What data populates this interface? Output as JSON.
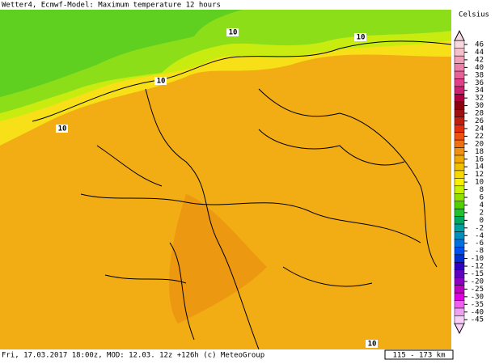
{
  "header": {
    "title": "Wetter4, Ecmwf-Model: Maximum temperature 12 hours"
  },
  "footer": {
    "text": "Fri, 17.03.2017 18:00z, MOD: 12.03. 12z +126h (c) MeteoGroup",
    "scale": "115 - 173 km"
  },
  "map": {
    "contour_labels": [
      "10",
      "10",
      "10",
      "10",
      "10"
    ]
  },
  "legend": {
    "title": "Celsius",
    "values": [
      46,
      44,
      42,
      40,
      38,
      36,
      34,
      32,
      30,
      28,
      26,
      24,
      22,
      20,
      18,
      16,
      14,
      12,
      10,
      8,
      6,
      4,
      2,
      0,
      -2,
      -4,
      -6,
      -8,
      -10,
      -12,
      -15,
      -20,
      -25,
      -30,
      -35,
      -40,
      -45
    ],
    "colors": [
      "#f8d8e0",
      "#f4c0cc",
      "#f0a0b8",
      "#ec80a8",
      "#e86098",
      "#e04088",
      "#d02070",
      "#b00040",
      "#8c0010",
      "#a01010",
      "#c02010",
      "#e03010",
      "#f05010",
      "#f07010",
      "#f09010",
      "#f0a800",
      "#f0c000",
      "#f8d800",
      "#f8f000",
      "#c8f000",
      "#90e000",
      "#50d000",
      "#20c030",
      "#00a860",
      "#00a0a0",
      "#0090c0",
      "#0070e0",
      "#0050f0",
      "#0030d0",
      "#3000c0",
      "#6000c0",
      "#9000c0",
      "#c000c0",
      "#e000e0",
      "#f060f0",
      "#f0a0f0",
      "#f8d0f8"
    ]
  }
}
